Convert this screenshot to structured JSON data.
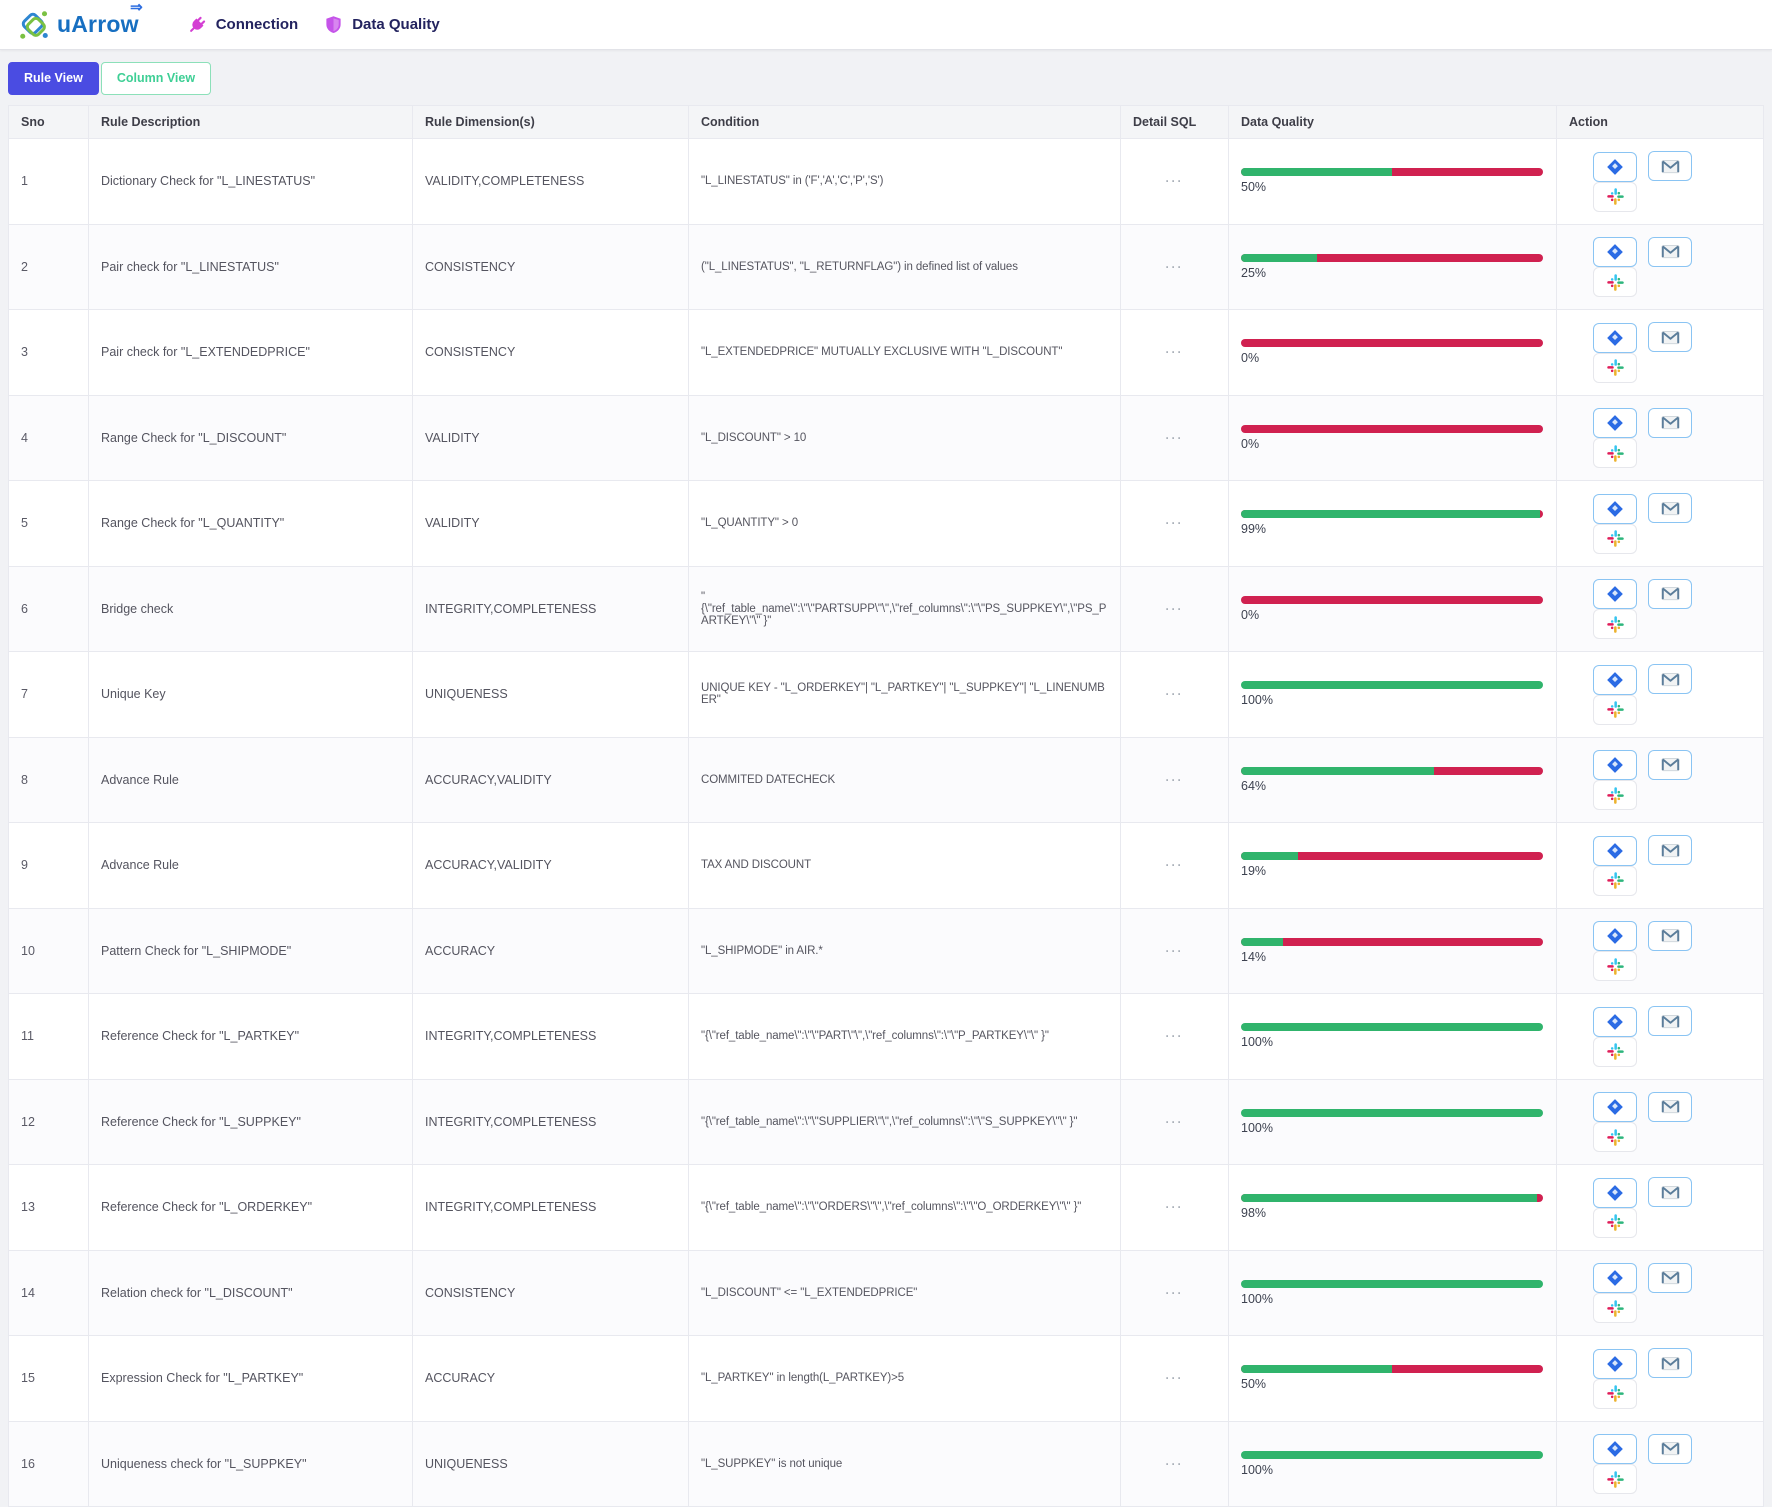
{
  "brand": {
    "name": "uArrow",
    "arrow_glyph": "⇒"
  },
  "nav": [
    {
      "label": "Connection",
      "icon": "plug-icon",
      "icon_color": "#d43fd3"
    },
    {
      "label": "Data Quality",
      "icon": "shield-icon",
      "icon_color": "#c554e9"
    }
  ],
  "tabs": [
    {
      "label": "Rule View",
      "active": true
    },
    {
      "label": "Column View",
      "active": false
    }
  ],
  "colors": {
    "brand_blue": "#176fc1",
    "nav_text": "#23235f",
    "active_tab_indigo": "#4a4ce2",
    "column_view_green": "#3ecf95",
    "quality_green": "#30b46c",
    "quality_red": "#d02150",
    "jira_blue": "#2b6be4",
    "slack_colors": [
      "#36c5f0",
      "#2eb67d",
      "#ecb22e",
      "#e01e5a"
    ]
  },
  "table": {
    "columns": [
      "Sno",
      "Rule Description",
      "Rule Dimension(s)",
      "Condition",
      "Detail SQL",
      "Data Quality",
      "Action"
    ],
    "detail_sql_label": "···",
    "action_icons": [
      "jira-icon",
      "gmail-icon",
      "slack-icon"
    ],
    "rows": [
      {
        "sno": "1",
        "description": "Dictionary Check for \"L_LINESTATUS\"",
        "dimensions": "VALIDITY,COMPLETENESS",
        "condition": "\"L_LINESTATUS\" in ('F','A','C','P','S')",
        "quality_pct": 50,
        "quality_label": "50%"
      },
      {
        "sno": "2",
        "description": "Pair check for \"L_LINESTATUS\"",
        "dimensions": "CONSISTENCY",
        "condition": "(\"L_LINESTATUS\", \"L_RETURNFLAG\") in defined list of values",
        "quality_pct": 25,
        "quality_label": "25%"
      },
      {
        "sno": "3",
        "description": "Pair check for \"L_EXTENDEDPRICE\"",
        "dimensions": "CONSISTENCY",
        "condition": "\"L_EXTENDEDPRICE\" MUTUALLY EXCLUSIVE WITH \"L_DISCOUNT\"",
        "quality_pct": 0,
        "quality_label": "0%"
      },
      {
        "sno": "4",
        "description": "Range Check for \"L_DISCOUNT\"",
        "dimensions": "VALIDITY",
        "condition": "\"L_DISCOUNT\" > 10",
        "quality_pct": 0,
        "quality_label": "0%"
      },
      {
        "sno": "5",
        "description": "Range Check for \"L_QUANTITY\"",
        "dimensions": "VALIDITY",
        "condition": "\"L_QUANTITY\" > 0",
        "quality_pct": 99,
        "quality_label": "99%"
      },
      {
        "sno": "6",
        "description": "Bridge check",
        "dimensions": "INTEGRITY,COMPLETENESS",
        "condition": "\"\n{\\\"ref_table_name\\\":\\\"\\\"PARTSUPP\\\"\\\",\\\"ref_columns\\\":\\\"\\\"PS_SUPPKEY\\\",\\\"PS_PARTKEY\\\"\\\" }\"",
        "quality_pct": 0,
        "quality_label": "0%"
      },
      {
        "sno": "7",
        "description": "Unique Key",
        "dimensions": "UNIQUENESS",
        "condition": "UNIQUE KEY - \"L_ORDERKEY\"| \"L_PARTKEY\"| \"L_SUPPKEY\"| \"L_LINENUMBER\"",
        "quality_pct": 100,
        "quality_label": "100%"
      },
      {
        "sno": "8",
        "description": "Advance Rule",
        "dimensions": "ACCURACY,VALIDITY",
        "condition": "COMMITED DATECHECK",
        "quality_pct": 64,
        "quality_label": "64%"
      },
      {
        "sno": "9",
        "description": "Advance Rule",
        "dimensions": "ACCURACY,VALIDITY",
        "condition": "TAX AND DISCOUNT",
        "quality_pct": 19,
        "quality_label": "19%"
      },
      {
        "sno": "10",
        "description": "Pattern Check for \"L_SHIPMODE\"",
        "dimensions": "ACCURACY",
        "condition": "\"L_SHIPMODE\" in AIR.*",
        "quality_pct": 14,
        "quality_label": "14%"
      },
      {
        "sno": "11",
        "description": "Reference Check for \"L_PARTKEY\"",
        "dimensions": "INTEGRITY,COMPLETENESS",
        "condition": "\"{\\\"ref_table_name\\\":\\\"\\\"PART\\\"\\\",\\\"ref_columns\\\":\\\"\\\"P_PARTKEY\\\"\\\" }\"",
        "quality_pct": 100,
        "quality_label": "100%"
      },
      {
        "sno": "12",
        "description": "Reference Check for \"L_SUPPKEY\"",
        "dimensions": "INTEGRITY,COMPLETENESS",
        "condition": "\"{\\\"ref_table_name\\\":\\\"\\\"SUPPLIER\\\"\\\",\\\"ref_columns\\\":\\\"\\\"S_SUPPKEY\\\"\\\" }\"",
        "quality_pct": 100,
        "quality_label": "100%"
      },
      {
        "sno": "13",
        "description": "Reference Check for \"L_ORDERKEY\"",
        "dimensions": "INTEGRITY,COMPLETENESS",
        "condition": "\"{\\\"ref_table_name\\\":\\\"\\\"ORDERS\\\"\\\",\\\"ref_columns\\\":\\\"\\\"O_ORDERKEY\\\"\\\" }\"",
        "quality_pct": 98,
        "quality_label": "98%"
      },
      {
        "sno": "14",
        "description": "Relation check for \"L_DISCOUNT\"",
        "dimensions": "CONSISTENCY",
        "condition": "\"L_DISCOUNT\" <= \"L_EXTENDEDPRICE\"",
        "quality_pct": 100,
        "quality_label": "100%"
      },
      {
        "sno": "15",
        "description": "Expression Check for \"L_PARTKEY\"",
        "dimensions": "ACCURACY",
        "condition": "\"L_PARTKEY\" in length(L_PARTKEY)>5",
        "quality_pct": 50,
        "quality_label": "50%"
      },
      {
        "sno": "16",
        "description": "Uniqueness check for \"L_SUPPKEY\"",
        "dimensions": "UNIQUENESS",
        "condition": "\"L_SUPPKEY\" is not unique",
        "quality_pct": 100,
        "quality_label": "100%"
      }
    ]
  }
}
